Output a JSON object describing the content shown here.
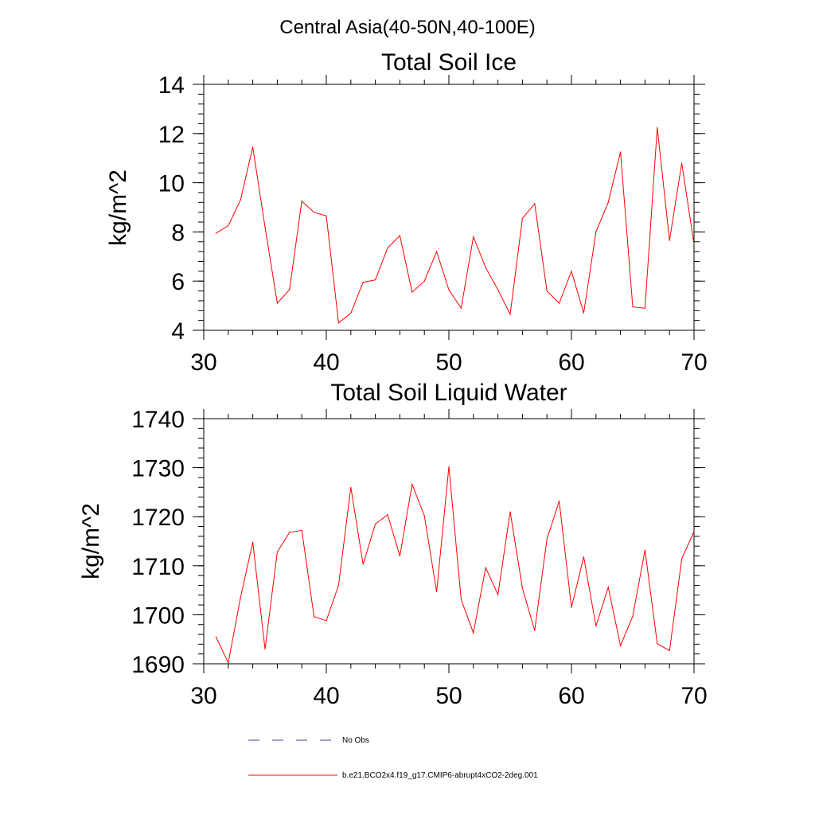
{
  "figure": {
    "title": "Central Asia(40-50N,40-100E)"
  },
  "legend": {
    "placement": "bottom-left",
    "items": [
      {
        "label": "No Obs",
        "color": "#4a4a9a",
        "dash": "dashed"
      },
      {
        "label": "b.e21.BCO2x4.f19_g17.CMIP6-abrupt4xCO2-2deg.001",
        "color": "#ff0000",
        "dash": "solid"
      }
    ]
  },
  "colors": {
    "series": "#ff0000",
    "no_obs": "#4a4a9a",
    "axes": "#000000"
  },
  "chart_data": [
    {
      "type": "line",
      "title": "Total Soil Ice",
      "xlabel": "",
      "ylabel": "kg/m^2",
      "xlim": [
        30,
        70
      ],
      "ylim": [
        4,
        14
      ],
      "xticks": [
        30,
        40,
        50,
        60,
        70
      ],
      "yticks": [
        4,
        6,
        8,
        10,
        12,
        14
      ],
      "grid": false,
      "x": [
        31,
        32,
        33,
        34,
        35,
        36,
        37,
        38,
        39,
        40,
        41,
        42,
        43,
        44,
        45,
        46,
        47,
        48,
        49,
        50,
        51,
        52,
        53,
        54,
        55,
        56,
        57,
        58,
        59,
        60,
        61,
        62,
        63,
        64,
        65,
        66,
        67,
        68,
        69,
        70
      ],
      "series": [
        {
          "values": [
            7.95,
            8.25,
            9.3,
            11.45,
            8.2,
            5.1,
            5.65,
            9.25,
            8.8,
            8.65,
            4.3,
            4.7,
            5.95,
            6.05,
            7.35,
            7.85,
            5.55,
            6.0,
            7.2,
            5.65,
            4.9,
            7.8,
            6.55,
            5.65,
            4.65,
            8.55,
            9.15,
            5.6,
            5.1,
            6.4,
            4.7,
            8.0,
            9.2,
            11.25,
            4.95,
            4.9,
            12.25,
            7.65,
            10.8,
            7.5
          ]
        }
      ]
    },
    {
      "type": "line",
      "title": "Total Soil Liquid Water",
      "xlabel": "",
      "ylabel": "kg/m^2",
      "xlim": [
        30,
        70
      ],
      "ylim": [
        1690,
        1740
      ],
      "xticks": [
        30,
        40,
        50,
        60,
        70
      ],
      "yticks": [
        1690,
        1700,
        1710,
        1720,
        1730,
        1740
      ],
      "grid": false,
      "x": [
        31,
        32,
        33,
        34,
        35,
        36,
        37,
        38,
        39,
        40,
        41,
        42,
        43,
        44,
        45,
        46,
        47,
        48,
        49,
        50,
        51,
        52,
        53,
        54,
        55,
        56,
        57,
        58,
        59,
        60,
        61,
        62,
        63,
        64,
        65,
        66,
        67,
        68,
        69,
        70
      ],
      "series": [
        {
          "values": [
            1695.5,
            1690.2,
            1703.5,
            1714.8,
            1693.0,
            1712.8,
            1716.8,
            1717.2,
            1699.6,
            1698.8,
            1706.0,
            1726.0,
            1710.3,
            1718.5,
            1720.4,
            1712.0,
            1726.6,
            1720.2,
            1704.7,
            1730.2,
            1703.1,
            1696.3,
            1709.6,
            1704.1,
            1721.0,
            1705.4,
            1696.8,
            1715.4,
            1723.2,
            1701.5,
            1711.8,
            1697.7,
            1705.6,
            1693.7,
            1699.7,
            1713.2,
            1694.1,
            1692.7,
            1711.4,
            1717.0
          ]
        }
      ]
    }
  ]
}
